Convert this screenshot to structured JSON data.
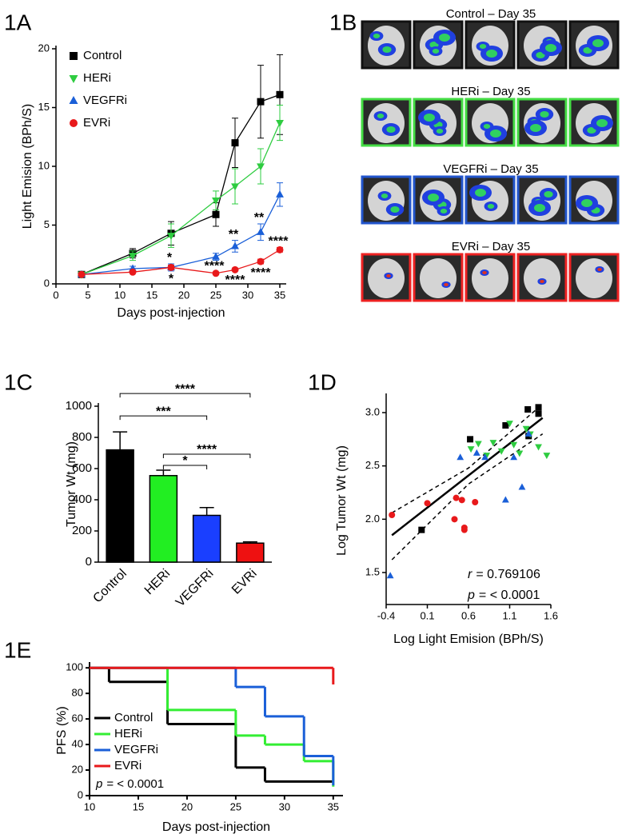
{
  "chart_data": [
    {
      "type": "line",
      "panel_label": "1A",
      "xlabel": "Days post-injection",
      "ylabel": "Light Emision (BPh/S)",
      "x": [
        4,
        12,
        18,
        25,
        28,
        32,
        35
      ],
      "xlim": [
        0,
        36
      ],
      "xticks": [
        0,
        5,
        10,
        15,
        20,
        25,
        30,
        35
      ],
      "ylim": [
        0,
        20
      ],
      "yticks": [
        0,
        5,
        10,
        15,
        20
      ],
      "legend": "upper left",
      "series": [
        {
          "name": "Control",
          "color": "#000000",
          "marker": "square",
          "values": [
            0.8,
            2.6,
            4.3,
            5.9,
            12,
            15.5,
            16.1
          ],
          "errors": [
            0.2,
            0.4,
            1.0,
            1.0,
            2.1,
            3.1,
            3.4
          ],
          "significance": [
            null,
            null,
            null,
            null,
            null,
            null,
            null
          ]
        },
        {
          "name": "HERi",
          "color": "#2ecc40",
          "marker": "triangle-down",
          "values": [
            0.8,
            2.4,
            4.1,
            7.1,
            8.3,
            10,
            13.7
          ],
          "errors": [
            0.2,
            0.4,
            1.0,
            0.8,
            1.5,
            1.5,
            1.5
          ],
          "significance": [
            null,
            null,
            null,
            null,
            null,
            null,
            null
          ]
        },
        {
          "name": "VEGFRi",
          "color": "#1a5fd8",
          "marker": "triangle-up",
          "values": [
            0.8,
            1.3,
            1.4,
            2.3,
            3.2,
            4.4,
            7.6
          ],
          "errors": [
            0.1,
            0.2,
            0.3,
            0.3,
            0.5,
            0.7,
            1.0
          ],
          "significance": [
            null,
            null,
            "*",
            null,
            "**",
            "**",
            null
          ]
        },
        {
          "name": "EVRi",
          "color": "#e8191b",
          "marker": "circle",
          "values": [
            0.8,
            1.0,
            1.4,
            0.9,
            1.2,
            1.9,
            2.9
          ],
          "errors": [
            0.1,
            0.1,
            0.2,
            0.1,
            0.1,
            0.2,
            0.2
          ],
          "significance": [
            null,
            null,
            "*",
            "****",
            "****",
            "****",
            "****"
          ]
        }
      ]
    },
    {
      "type": "bar",
      "panel_label": "1C",
      "ylabel": "Tumor Wt (mg)",
      "categories": [
        "Control",
        "HERi",
        "VEGFRi",
        "EVRi"
      ],
      "values": [
        720,
        555,
        300,
        122
      ],
      "errors": [
        115,
        35,
        50,
        8
      ],
      "colors": [
        "#000000",
        "#22ee22",
        "#1a3fff",
        "#ee1111"
      ],
      "ylim": [
        0,
        1000
      ],
      "yticks": [
        0,
        200,
        400,
        600,
        800,
        1000
      ],
      "comparisons": [
        {
          "groups": [
            "Control",
            "EVRi"
          ],
          "label": "****"
        },
        {
          "groups": [
            "Control",
            "VEGFRi"
          ],
          "label": "***"
        },
        {
          "groups": [
            "HERi",
            "EVRi"
          ],
          "label": "****"
        },
        {
          "groups": [
            "HERi",
            "VEGFRi"
          ],
          "label": "*"
        }
      ]
    },
    {
      "type": "scatter",
      "panel_label": "1D",
      "xlabel": "Log Light Emision (BPh/S)",
      "ylabel": "Log Tumor Wt (mg)",
      "xlim": [
        -0.4,
        1.6
      ],
      "xticks": [
        -0.4,
        0.1,
        0.6,
        1.1,
        1.6
      ],
      "ylim": [
        1.2,
        3.15
      ],
      "yticks": [
        1.5,
        {
          "value": 2,
          "label": "2.0"
        },
        2.5,
        {
          "value": 3,
          "label": "3.0"
        }
      ],
      "series": [
        {
          "color": "#000000",
          "marker": "square",
          "x": [
            0.03,
            0.62,
            1.05,
            1.32,
            1.45,
            1.45,
            1.33
          ],
          "y": [
            1.9,
            2.75,
            2.88,
            3.03,
            3.05,
            2.99,
            2.78
          ]
        },
        {
          "color": "#2ecc40",
          "marker": "triangle-down",
          "x": [
            0.63,
            0.72,
            0.82,
            0.9,
            1.1,
            1.15,
            1.22,
            1.35,
            1.3,
            1.45,
            1.55,
            1.0
          ],
          "y": [
            2.66,
            2.71,
            2.6,
            2.72,
            2.9,
            2.7,
            2.62,
            2.8,
            2.85,
            2.68,
            2.6,
            2.64
          ]
        },
        {
          "color": "#1a5fd8",
          "marker": "triangle-up",
          "x": [
            -0.35,
            0.5,
            0.7,
            0.8,
            1.05,
            1.15,
            1.25,
            1.33
          ],
          "y": [
            1.47,
            2.58,
            2.62,
            2.58,
            2.18,
            2.58,
            2.3,
            2.8
          ]
        },
        {
          "color": "#e8191b",
          "marker": "circle",
          "x": [
            -0.33,
            0.1,
            0.43,
            0.45,
            0.52,
            0.55,
            0.55,
            0.68
          ],
          "y": [
            2.04,
            2.15,
            2.0,
            2.2,
            2.18,
            1.92,
            1.9,
            2.16
          ]
        }
      ],
      "fit": {
        "x": [
          -0.33,
          0.6,
          1.5
        ],
        "y": [
          1.85,
          2.41,
          2.95
        ],
        "upper": [
          2.06,
          2.48,
          3.08
        ],
        "lower": [
          1.62,
          2.33,
          2.8
        ]
      },
      "stats": [
        {
          "symbol": "r",
          "text": "= 0.769106"
        },
        {
          "symbol": "p",
          "text": "= < 0.0001"
        }
      ]
    },
    {
      "type": "step",
      "panel_label": "1E",
      "xlabel": "Days post-injection",
      "ylabel": "PFS (%)",
      "xlim": [
        10,
        36
      ],
      "xticks": [
        10,
        15,
        20,
        25,
        30,
        35
      ],
      "ylim": [
        0,
        102
      ],
      "yticks": [
        0,
        20,
        40,
        60,
        80,
        100
      ],
      "legend": "lower left",
      "annotation": {
        "symbol": "p",
        "text": "= < 0.0001"
      },
      "series": [
        {
          "name": "Control",
          "color": "#000000",
          "x": [
            10,
            12,
            18,
            25,
            28,
            35
          ],
          "values": [
            100,
            89,
            56,
            22,
            11,
            11
          ]
        },
        {
          "name": "HERi",
          "color": "#33ee33",
          "x": [
            10,
            18,
            25,
            28,
            32,
            35
          ],
          "values": [
            100,
            67,
            47,
            40,
            27,
            7
          ]
        },
        {
          "name": "VEGFRi",
          "color": "#1a5fd8",
          "x": [
            10,
            25,
            28,
            32,
            35
          ],
          "values": [
            100,
            85,
            62,
            31,
            8
          ]
        },
        {
          "name": "EVRi",
          "color": "#e8191b",
          "x": [
            10,
            35
          ],
          "values": [
            100,
            87
          ]
        }
      ]
    }
  ],
  "image_panel": {
    "label": "1B",
    "groups": [
      {
        "title": "Control – Day 35",
        "color": "#111111"
      },
      {
        "title": "HERi – Day 35",
        "color": "#44dd44"
      },
      {
        "title": "VEGFRi – Day 35",
        "color": "#2255cc"
      },
      {
        "title": "EVRi – Day 35",
        "color": "#ee2222"
      }
    ]
  }
}
